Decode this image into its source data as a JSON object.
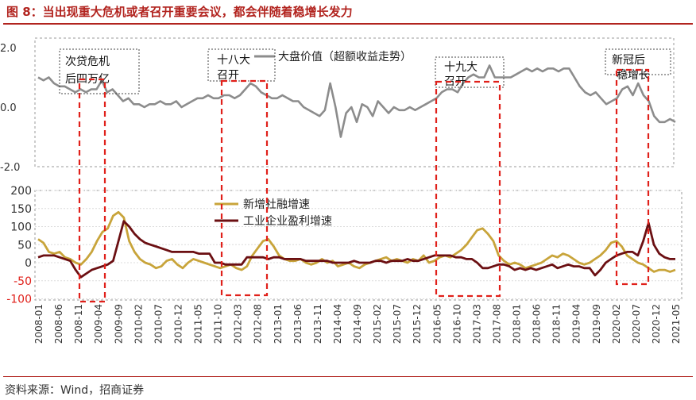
{
  "figure": {
    "title": "图 8：当出现重大危机或者召开重要会议，都会伴随着稳增长发力",
    "source": "资料来源：Wind，招商证券"
  },
  "chart_data": [
    {
      "type": "line",
      "panel": "top",
      "title": "",
      "ylim": [
        -2.0,
        2.0
      ],
      "yticks": [
        "2.0",
        "0.0",
        "-2.0"
      ],
      "grid": false,
      "legend_position": "top",
      "series": [
        {
          "name": "大盘价值（超额收益走势）",
          "color": "#8c8c8c",
          "values": [
            1.0,
            0.9,
            1.0,
            0.8,
            0.7,
            0.7,
            0.6,
            0.5,
            0.6,
            0.5,
            0.6,
            0.6,
            0.9,
            0.5,
            0.6,
            0.4,
            0.2,
            0.3,
            0.1,
            0.1,
            0.0,
            0.1,
            0.1,
            0.2,
            0.1,
            0.1,
            0.2,
            0.0,
            0.1,
            0.2,
            0.3,
            0.3,
            0.4,
            0.3,
            0.3,
            0.4,
            0.4,
            0.3,
            0.4,
            0.6,
            0.8,
            0.7,
            0.5,
            0.4,
            0.3,
            0.3,
            0.4,
            0.3,
            0.2,
            0.2,
            0.0,
            -0.1,
            -0.2,
            -0.3,
            -0.1,
            0.8,
            0.0,
            -1.0,
            -0.2,
            0.0,
            -0.5,
            0.1,
            0.0,
            -0.3,
            0.2,
            0.0,
            -0.2,
            0.0,
            -0.1,
            -0.1,
            0.0,
            -0.1,
            0.0,
            0.1,
            0.2,
            0.3,
            0.5,
            0.6,
            0.6,
            0.5,
            0.8,
            1.0,
            1.1,
            1.0,
            1.0,
            1.4,
            1.0,
            1.0,
            1.0,
            1.0,
            1.1,
            1.2,
            1.3,
            1.2,
            1.3,
            1.2,
            1.3,
            1.3,
            1.2,
            1.3,
            1.3,
            1.0,
            0.7,
            0.5,
            0.4,
            0.5,
            0.3,
            0.1,
            0.2,
            0.3,
            0.6,
            0.7,
            0.4,
            0.8,
            0.4,
            0.2,
            -0.3,
            -0.5,
            -0.5,
            -0.4,
            -0.5
          ]
        }
      ]
    },
    {
      "type": "line",
      "panel": "bottom",
      "title": "",
      "ylim": [
        -100,
        200
      ],
      "yticks": [
        "200",
        "150",
        "100",
        "50",
        "0",
        "-50",
        "-100"
      ],
      "grid": true,
      "legend_position": "top-left",
      "x_labels": [
        "2008-01",
        "2008-06",
        "2008-11",
        "2009-04",
        "2009-09",
        "2010-02",
        "2010-07",
        "2010-12",
        "2011-05",
        "2011-10",
        "2012-03",
        "2012-08",
        "2013-01",
        "2013-06",
        "2013-11",
        "2014-04",
        "2014-09",
        "2015-02",
        "2015-07",
        "2015-12",
        "2016-05",
        "2016-10",
        "2017-03",
        "2017-08",
        "2018-01",
        "2018-06",
        "2018-11",
        "2019-04",
        "2019-09",
        "2020-02",
        "2020-07",
        "2020-12",
        "2021-05"
      ],
      "series": [
        {
          "name": "新增社融增速",
          "color": "#c8a43a",
          "values": [
            65,
            55,
            30,
            25,
            30,
            15,
            10,
            0,
            -5,
            10,
            30,
            60,
            85,
            95,
            130,
            140,
            125,
            60,
            30,
            10,
            0,
            -5,
            -15,
            -10,
            5,
            10,
            -5,
            -15,
            0,
            10,
            5,
            0,
            -5,
            -10,
            -15,
            -10,
            -5,
            -15,
            -20,
            -10,
            20,
            40,
            60,
            65,
            45,
            20,
            10,
            5,
            5,
            10,
            0,
            -5,
            0,
            10,
            0,
            5,
            -10,
            -5,
            0,
            -10,
            -15,
            -5,
            0,
            5,
            10,
            15,
            5,
            10,
            5,
            0,
            10,
            5,
            20,
            0,
            5,
            15,
            20,
            15,
            25,
            35,
            50,
            70,
            90,
            95,
            80,
            60,
            20,
            5,
            -5,
            0,
            -5,
            -15,
            -10,
            -5,
            0,
            10,
            20,
            15,
            25,
            20,
            10,
            0,
            -5,
            0,
            10,
            20,
            35,
            55,
            60,
            45,
            20,
            10,
            0,
            -5,
            -15,
            -25,
            -20,
            -20,
            -25,
            -20
          ],
          "nulls_note": ""
        },
        {
          "name": "工业企业盈利增速",
          "color": "#6b0f12",
          "values": [
            15,
            20,
            20,
            20,
            15,
            10,
            5,
            -20,
            -40,
            -30,
            -20,
            -15,
            -10,
            -5,
            5,
            60,
            115,
            100,
            80,
            65,
            55,
            50,
            45,
            40,
            35,
            30,
            30,
            30,
            30,
            30,
            25,
            25,
            25,
            0,
            0,
            -5,
            -5,
            -5,
            -5,
            15,
            15,
            15,
            15,
            10,
            15,
            15,
            10,
            10,
            10,
            10,
            5,
            5,
            5,
            5,
            5,
            0,
            0,
            0,
            0,
            5,
            0,
            0,
            0,
            5,
            5,
            0,
            5,
            5,
            5,
            10,
            5,
            5,
            10,
            15,
            20,
            20,
            20,
            20,
            15,
            15,
            10,
            10,
            0,
            -15,
            -15,
            -10,
            -5,
            -5,
            -10,
            -20,
            -15,
            -20,
            -15,
            -20,
            -15,
            -10,
            -5,
            -15,
            -10,
            -5,
            -10,
            -10,
            -15,
            -15,
            -35,
            -20,
            0,
            10,
            20,
            25,
            30,
            30,
            20,
            60,
            110,
            50,
            25,
            15,
            10,
            10
          ],
          "nulls_note": ""
        }
      ]
    }
  ],
  "annotations": {
    "box1_label_line1": "次贷危机",
    "box1_label_line2": "后四万亿",
    "box2_label_line1": "十八大",
    "box2_label_line2": "召开",
    "box3_label_line1": "十九大",
    "box3_label_line2": "召开",
    "box4_label_line1": "新冠后",
    "box4_label_line2": "稳增长"
  },
  "colors": {
    "accent": "#b2241f",
    "highlight_box": "#e0201a",
    "panel_border": "#9a9a9a"
  }
}
